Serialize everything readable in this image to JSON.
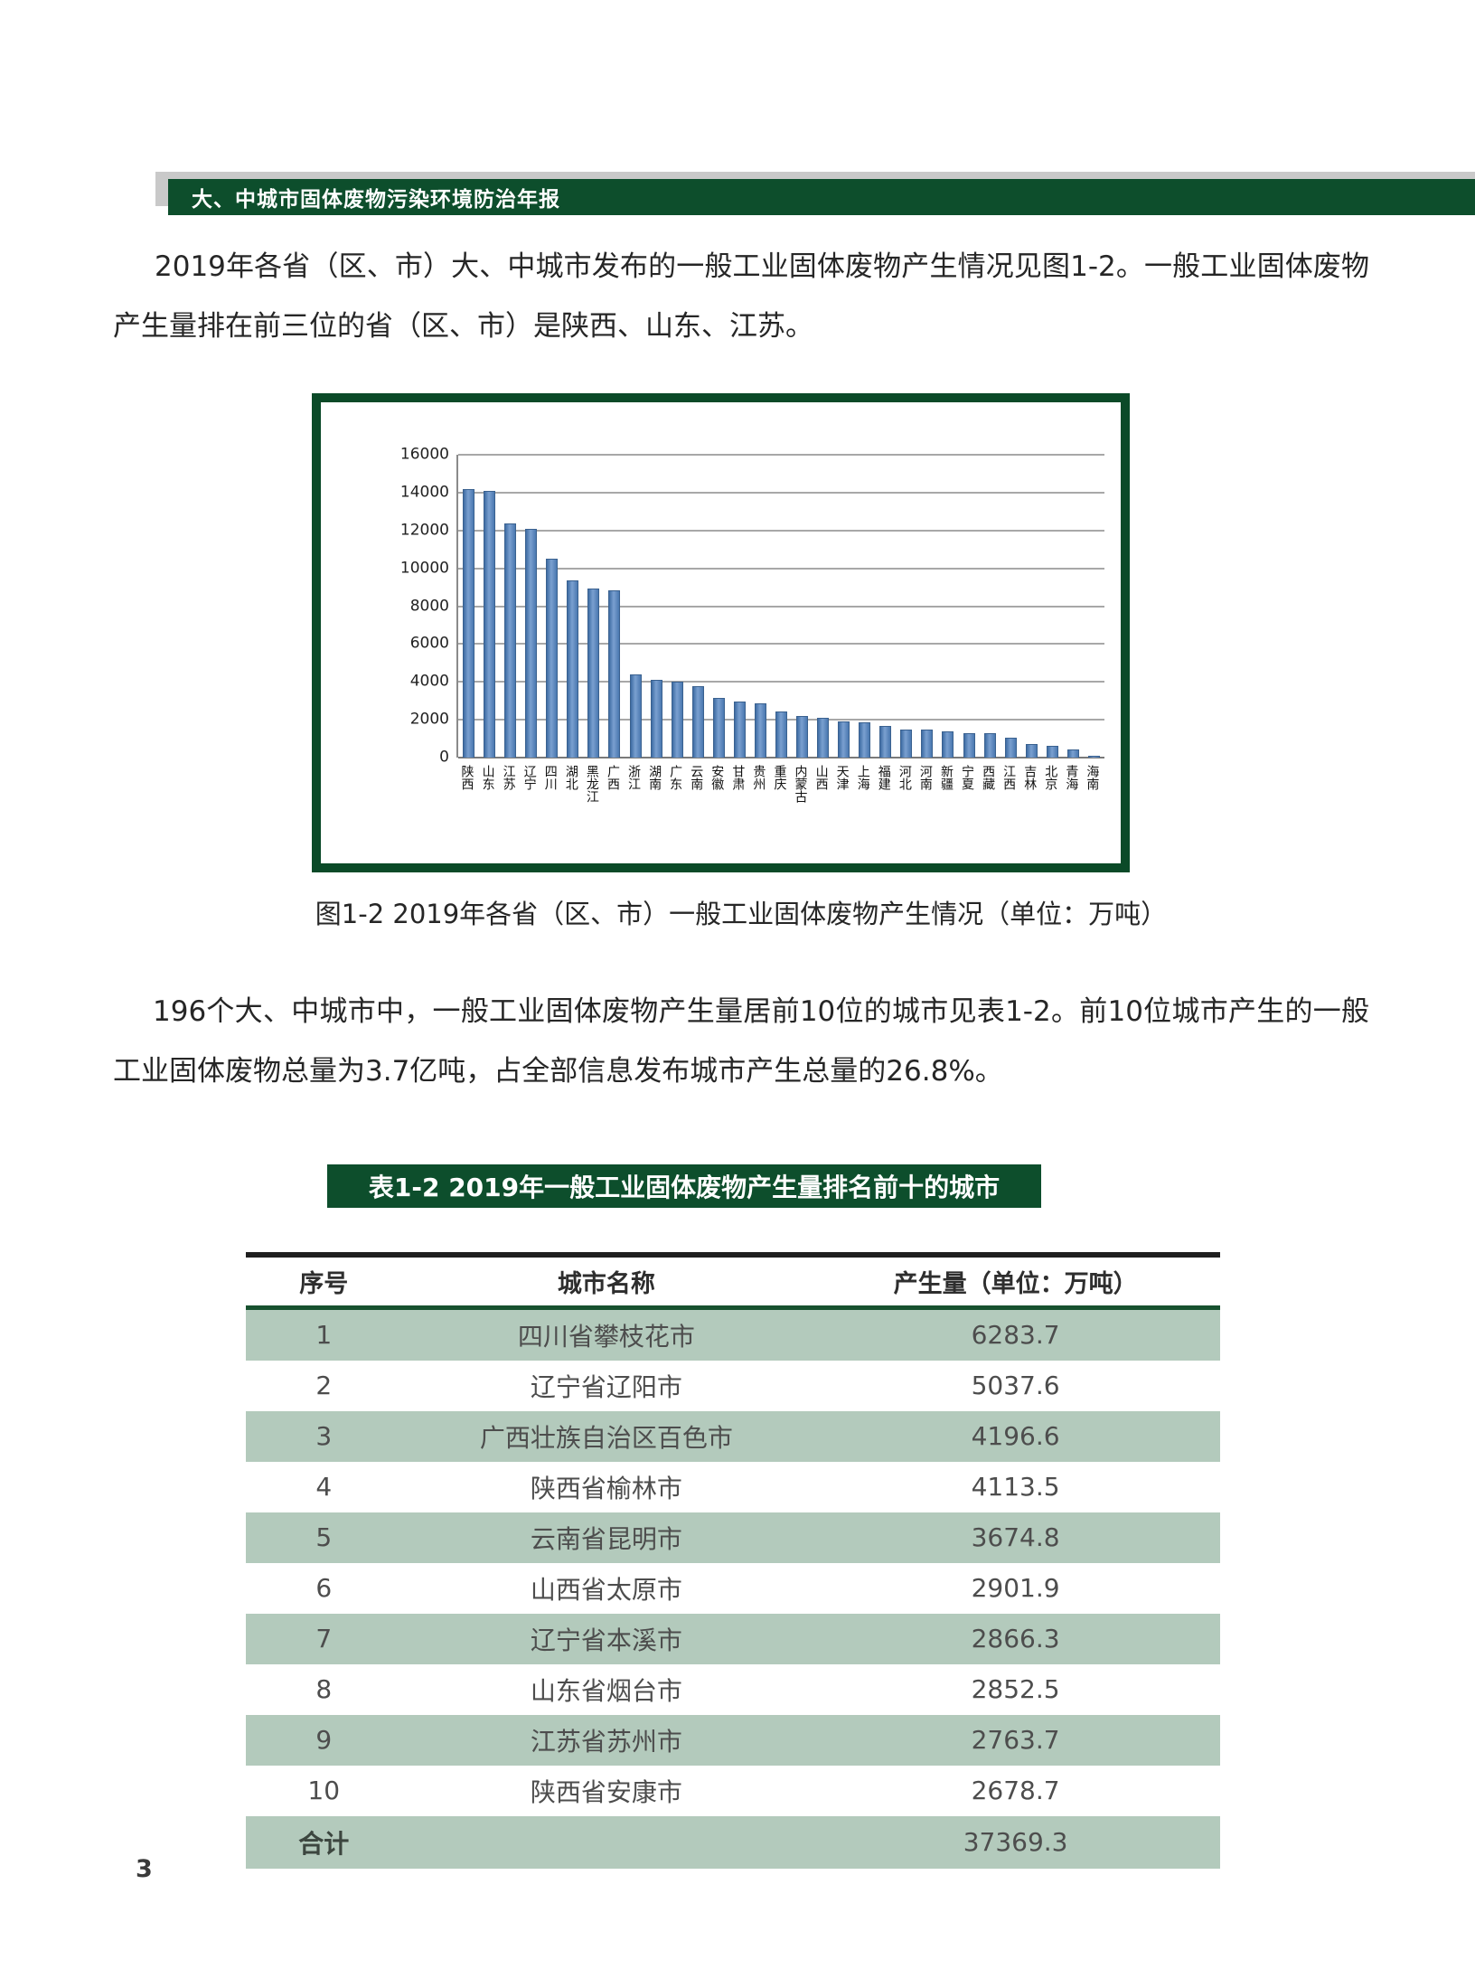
{
  "header": {
    "title": "大、中城市固体废物污染环境防治年报"
  },
  "paragraphs": {
    "p1": "2019年各省（区、市）大、中城市发布的一般工业固体废物产生情况见图1-2。一般工业固体废物产生量排在前三位的省（区、市）是陕西、山东、江苏。",
    "p2": "196个大、中城市中，一般工业固体废物产生量居前10位的城市见表1-2。前10位城市产生的一般工业固体废物总量为3.7亿吨，占全部信息发布城市产生总量的26.8%。"
  },
  "figure": {
    "caption": "图1-2 2019年各省（区、市）一般工业固体废物产生情况（单位：万吨）"
  },
  "chart_data": {
    "type": "bar",
    "title": "",
    "xlabel": "",
    "ylabel": "",
    "unit": "万吨",
    "ylim": [
      0,
      16000
    ],
    "yticks": [
      0,
      2000,
      4000,
      6000,
      8000,
      10000,
      12000,
      14000,
      16000
    ],
    "grid": true,
    "bar_color": "#4f81bd",
    "categories": [
      "陕西",
      "山东",
      "江苏",
      "辽宁",
      "四川",
      "湖北",
      "黑龙江",
      "广西",
      "浙江",
      "湖南",
      "广东",
      "云南",
      "安徽",
      "甘肃",
      "贵州",
      "重庆",
      "内蒙古",
      "山西",
      "天津",
      "上海",
      "福建",
      "河北",
      "河南",
      "新疆",
      "宁夏",
      "西藏",
      "江西",
      "吉林",
      "北京",
      "青海",
      "海南"
    ],
    "values": [
      14200,
      14100,
      12350,
      12100,
      10500,
      9350,
      8950,
      8850,
      4400,
      4100,
      4000,
      3750,
      3150,
      2950,
      2850,
      2450,
      2200,
      2100,
      1900,
      1850,
      1650,
      1500,
      1500,
      1400,
      1300,
      1300,
      1050,
      700,
      600,
      420,
      80
    ]
  },
  "table": {
    "title": "表1-2  2019年一般工业固体废物产生量排名前十的城市",
    "headers": [
      "序号",
      "城市名称",
      "产生量（单位：万吨）"
    ],
    "rows": [
      {
        "num": "1",
        "city": "四川省攀枝花市",
        "value": "6283.7"
      },
      {
        "num": "2",
        "city": "辽宁省辽阳市",
        "value": "5037.6"
      },
      {
        "num": "3",
        "city": "广西壮族自治区百色市",
        "value": "4196.6"
      },
      {
        "num": "4",
        "city": "陕西省榆林市",
        "value": "4113.5"
      },
      {
        "num": "5",
        "city": "云南省昆明市",
        "value": "3674.8"
      },
      {
        "num": "6",
        "city": "山西省太原市",
        "value": "2901.9"
      },
      {
        "num": "7",
        "city": "辽宁省本溪市",
        "value": "2866.3"
      },
      {
        "num": "8",
        "city": "山东省烟台市",
        "value": "2852.5"
      },
      {
        "num": "9",
        "city": "江苏省苏州市",
        "value": "2763.7"
      },
      {
        "num": "10",
        "city": "陕西省安康市",
        "value": "2678.7"
      }
    ],
    "total": {
      "label": "合计",
      "city": "",
      "value": "37369.3"
    }
  },
  "page_number": "3",
  "colors": {
    "dark_green": "#0d4e2c",
    "chart_border_green": "#0b4a28",
    "row_green": "#b3cabc",
    "shadow_gray": "#c9c9c9",
    "bar_blue": "#4f81bd"
  }
}
